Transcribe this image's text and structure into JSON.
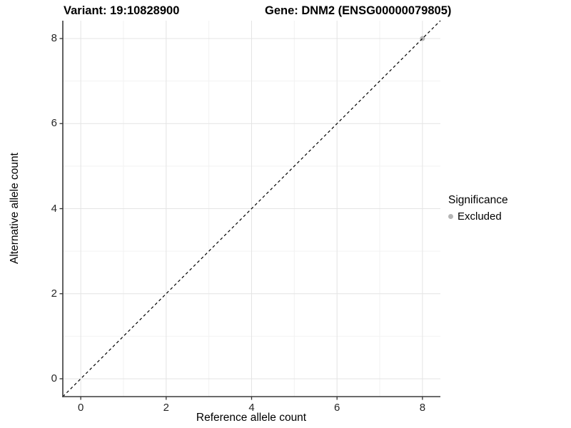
{
  "chart_data": {
    "type": "scatter",
    "title_left": "Variant: 19:10828900",
    "title_right": "Gene: DNM2 (ENSG00000079805)",
    "xlabel": "Reference allele count",
    "ylabel": "Alternative allele count",
    "xlim": [
      -0.42,
      8.42
    ],
    "ylim": [
      -0.42,
      8.42
    ],
    "x_ticks": [
      0,
      2,
      4,
      6,
      8
    ],
    "y_ticks": [
      0,
      2,
      4,
      6,
      8
    ],
    "x_minor_ticks": [
      1,
      3,
      5,
      7
    ],
    "y_minor_ticks": [
      1,
      3,
      5,
      7
    ],
    "grid": "major and minor, light grey on white panel",
    "identity_line": {
      "style": "dashed",
      "from": [
        -0.42,
        -0.42
      ],
      "to": [
        8.42,
        8.42
      ],
      "color": "#000000"
    },
    "points": [
      {
        "x": 8,
        "y": 8,
        "significance": "Excluded"
      }
    ],
    "legend": {
      "title": "Significance",
      "position": "right",
      "items": [
        {
          "label": "Excluded",
          "color": "#b5b5b5"
        }
      ]
    }
  },
  "colors": {
    "background": "#ffffff",
    "grid_major": "#e4e4e4",
    "grid_minor": "#f2f2f2",
    "axis_line": "#3a3a3a",
    "tick_mark": "#333333",
    "tick_text": "#262626",
    "point": "#b5b5b5"
  }
}
